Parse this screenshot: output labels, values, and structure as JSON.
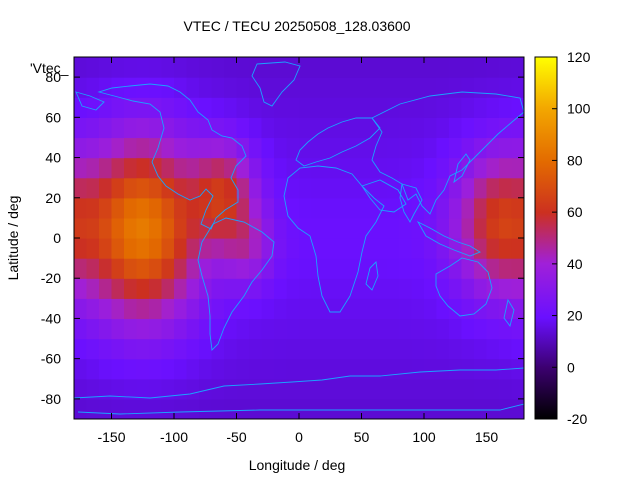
{
  "chart_data": {
    "type": "heatmap",
    "title": "VTEC / TECU 20250508_128.03600",
    "xlabel": "Longitude / deg",
    "ylabel": "Latitude / deg",
    "key_label": "'Vtec_",
    "xlim": [
      -180,
      180
    ],
    "ylim": [
      -90,
      90
    ],
    "xticks": [
      -150,
      -100,
      -50,
      0,
      50,
      100,
      150
    ],
    "yticks": [
      -80,
      -60,
      -40,
      -20,
      0,
      20,
      40,
      60,
      80
    ],
    "colorbar": {
      "min": -20,
      "max": 120,
      "ticks": [
        -20,
        0,
        20,
        40,
        60,
        80,
        100,
        120
      ]
    },
    "features": {
      "background_vtec": 20,
      "overlay": "coastlines",
      "coastline_color": "#1aa3ff"
    },
    "hotspots": [
      {
        "lon": -125,
        "lat": 5,
        "vtec": 85,
        "radius_deg": 45
      },
      {
        "lon": -60,
        "lat": 22,
        "vtec": 58,
        "radius_deg": 25
      },
      {
        "lon": 160,
        "lat": 8,
        "vtec": 62,
        "radius_deg": 35
      },
      {
        "lon": -40,
        "lat": -5,
        "vtec": 38,
        "radius_deg": 20
      }
    ]
  }
}
